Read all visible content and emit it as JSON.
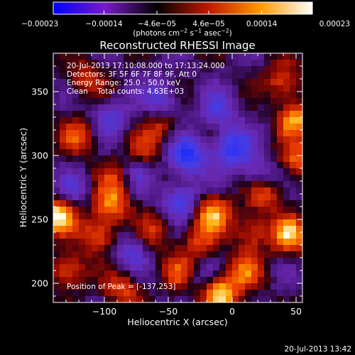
{
  "chart_data": {
    "type": "heatmap",
    "title": "Reconstructed RHESSI Image",
    "xlabel": "Heliocentric X (arcsec)",
    "ylabel": "Heliocentric Y (arcsec)",
    "xlim": [
      -140,
      55
    ],
    "ylim": [
      185,
      380
    ],
    "x_ticks": [
      -100,
      -50,
      0,
      50
    ],
    "x_tick_labels": [
      "−100",
      "−50",
      "0",
      "50"
    ],
    "y_ticks": [
      200,
      250,
      300,
      350
    ],
    "y_tick_labels": [
      "200",
      "250",
      "300",
      "350"
    ],
    "colorbar": {
      "ticks": [
        -0.00023,
        -0.00014,
        -4.6e-05,
        4.6e-05,
        0.00014,
        0.00023
      ],
      "tick_labels": [
        "−0.00023",
        "−0.00014",
        "−4.6e−05",
        "4.6e−05",
        "0.00014",
        "0.00023"
      ],
      "label_main": "(photons cm",
      "label_exp1": "−2",
      "label_mid": " s",
      "label_exp2": "−1",
      "label_mid2": " asec",
      "label_exp3": "−2",
      "label_end": ")",
      "colors": [
        "#0000ff",
        "#7a1ac8",
        "#000000",
        "#c01800",
        "#ff9a00",
        "#ffffff"
      ]
    },
    "annotations": [
      "20-Jul-2013 17:10:08.000 to 17:13:24.000",
      "Detectors: 3F 5F 6F 7F 8F 9F, Att 0",
      "Energy Range: 25.0 - 50.0 keV",
      "Clean    Total counts: 4.63E+03"
    ],
    "peak_text": "Position of Peak = [-137,253]",
    "peak_position": [
      -137,
      253
    ],
    "hot_spots": [
      {
        "x": -137,
        "y": 253,
        "v": 1.0
      },
      {
        "x": -10,
        "y": 192,
        "v": 0.95
      },
      {
        "x": -15,
        "y": 255,
        "v": 0.75
      },
      {
        "x": 45,
        "y": 238,
        "v": 0.8
      },
      {
        "x": 50,
        "y": 328,
        "v": 0.75
      },
      {
        "x": 40,
        "y": 358,
        "v": 0.55
      },
      {
        "x": 52,
        "y": 296,
        "v": 0.6
      },
      {
        "x": -95,
        "y": 262,
        "v": 0.7
      },
      {
        "x": -105,
        "y": 238,
        "v": 0.6
      },
      {
        "x": -120,
        "y": 315,
        "v": 0.5
      },
      {
        "x": -128,
        "y": 210,
        "v": 0.6
      },
      {
        "x": -85,
        "y": 195,
        "v": 0.5
      },
      {
        "x": -40,
        "y": 208,
        "v": 0.5
      },
      {
        "x": -70,
        "y": 300,
        "v": 0.5
      },
      {
        "x": -55,
        "y": 322,
        "v": 0.4
      },
      {
        "x": 15,
        "y": 240,
        "v": 0.5
      },
      {
        "x": 25,
        "y": 270,
        "v": 0.55
      },
      {
        "x": -25,
        "y": 232,
        "v": 0.45
      },
      {
        "x": -115,
        "y": 360,
        "v": 0.45
      },
      {
        "x": 10,
        "y": 210,
        "v": 0.55
      },
      {
        "x": -60,
        "y": 240,
        "v": 0.4
      },
      {
        "x": -90,
        "y": 285,
        "v": 0.4
      }
    ],
    "cold_spots": [
      {
        "x": -35,
        "y": 300,
        "v": -0.85
      },
      {
        "x": 0,
        "y": 305,
        "v": -0.75
      },
      {
        "x": -40,
        "y": 265,
        "v": -0.6
      },
      {
        "x": -75,
        "y": 290,
        "v": -0.5
      },
      {
        "x": -10,
        "y": 335,
        "v": -0.45
      },
      {
        "x": -55,
        "y": 345,
        "v": -0.45
      },
      {
        "x": -80,
        "y": 225,
        "v": -0.4
      },
      {
        "x": -95,
        "y": 330,
        "v": -0.4
      },
      {
        "x": 20,
        "y": 285,
        "v": -0.4
      },
      {
        "x": -25,
        "y": 205,
        "v": -0.3
      },
      {
        "x": -125,
        "y": 272,
        "v": -0.35
      }
    ]
  },
  "footer": {
    "timestamp": "20-Jul-2013 13:42"
  }
}
